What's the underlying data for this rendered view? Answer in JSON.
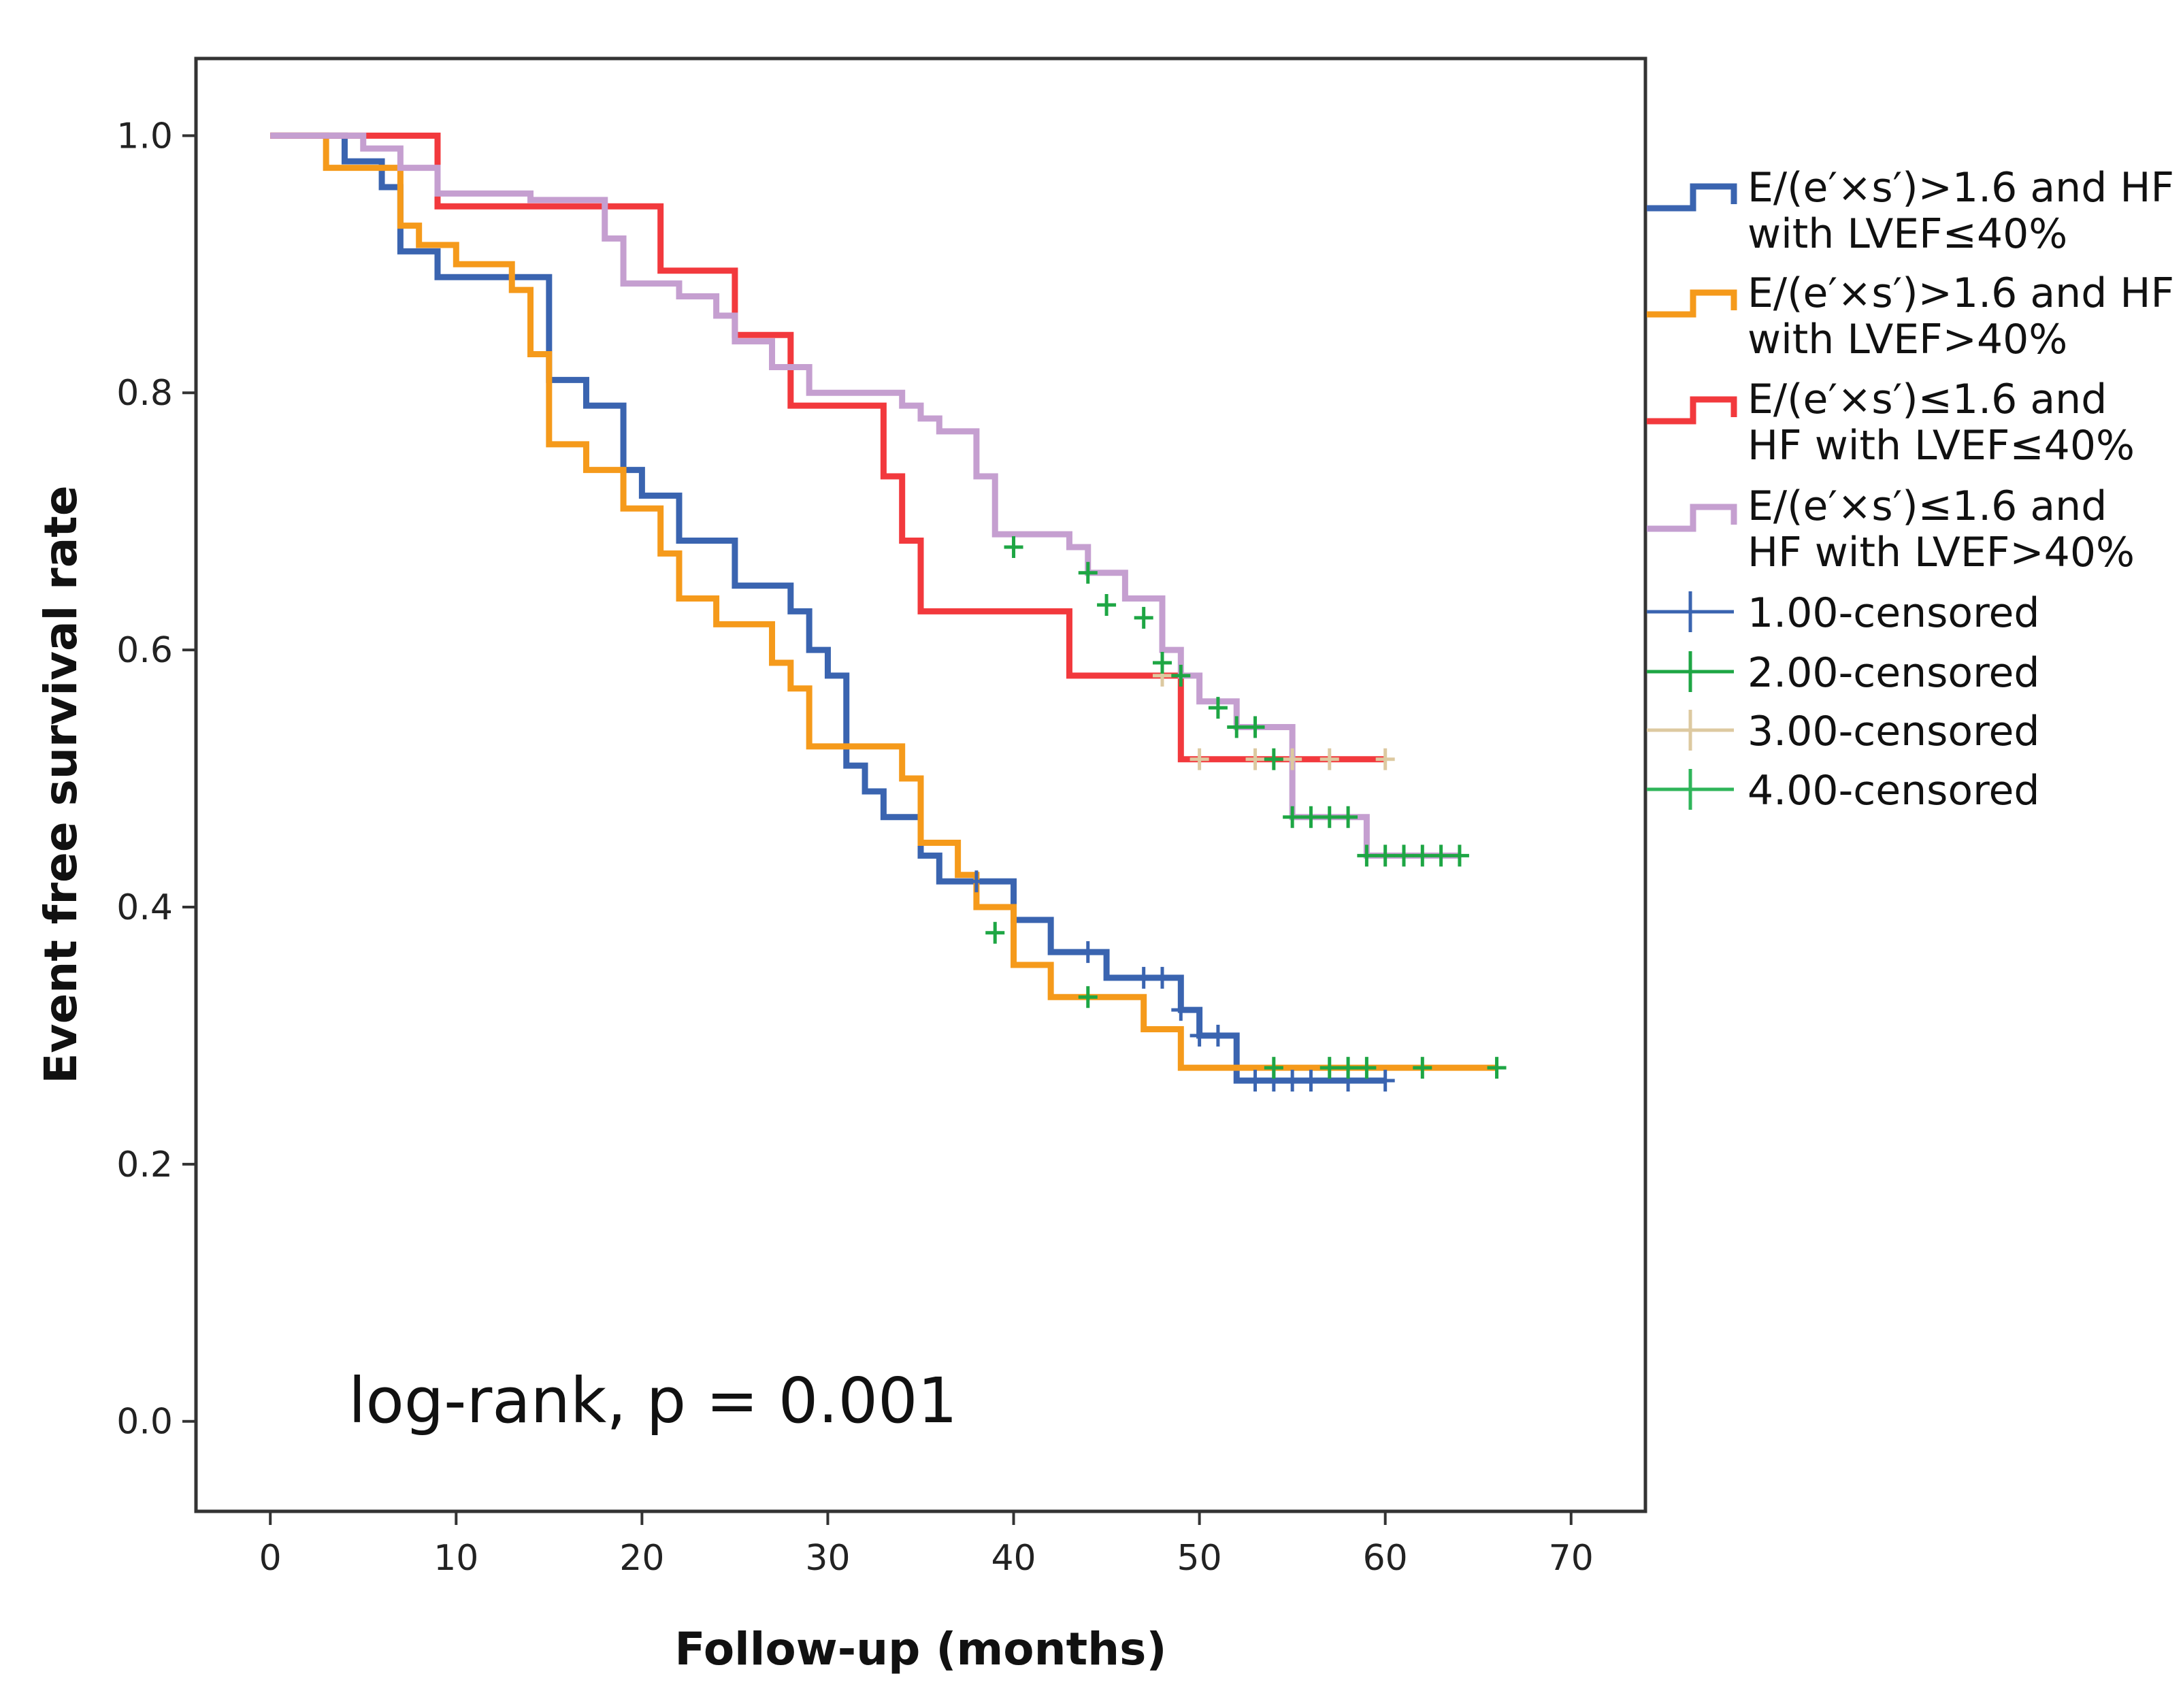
{
  "chart_data": {
    "type": "line",
    "subtype": "kaplan-meier",
    "title": "",
    "xlabel": "Follow-up (months)",
    "ylabel": "Event free survival rate",
    "xlim": [
      -4,
      74
    ],
    "ylim": [
      -0.07,
      1.06
    ],
    "xticks": [
      0,
      10,
      20,
      30,
      40,
      50,
      60,
      70
    ],
    "xtick_labels": [
      "0",
      "10",
      "20",
      "30",
      "40",
      "50",
      "60",
      "70"
    ],
    "yticks": [
      0.0,
      0.2,
      0.4,
      0.6,
      0.8,
      1.0
    ],
    "ytick_labels": [
      "0.0",
      "0.2",
      "0.4",
      "0.6",
      "0.8",
      "1.0"
    ],
    "grid": false,
    "annotation": "log-rank, p = 0.001",
    "legend_position": "right",
    "series": [
      {
        "name": "E/(e′×s′)>1.6 and HF with LVEF≤40%",
        "legend_lines": [
          "E/(e′×s′)>1.6 and HF",
          "with LVEF≤40%"
        ],
        "color": "#3a64b0",
        "steps": [
          [
            0,
            1.0
          ],
          [
            4,
            0.98
          ],
          [
            6,
            0.96
          ],
          [
            7,
            0.91
          ],
          [
            9,
            0.89
          ],
          [
            13,
            0.89
          ],
          [
            15,
            0.81
          ],
          [
            17,
            0.79
          ],
          [
            19,
            0.74
          ],
          [
            20,
            0.72
          ],
          [
            22,
            0.685
          ],
          [
            25,
            0.65
          ],
          [
            28,
            0.63
          ],
          [
            29,
            0.6
          ],
          [
            30,
            0.58
          ],
          [
            31,
            0.51
          ],
          [
            32,
            0.49
          ],
          [
            33,
            0.47
          ],
          [
            35,
            0.44
          ],
          [
            36,
            0.42
          ],
          [
            40,
            0.39
          ],
          [
            42,
            0.365
          ],
          [
            45,
            0.345
          ],
          [
            49,
            0.32
          ],
          [
            50,
            0.3
          ],
          [
            52,
            0.265
          ],
          [
            60,
            0.265
          ]
        ],
        "censored": [
          [
            38,
            0.42
          ],
          [
            44,
            0.365
          ],
          [
            47,
            0.345
          ],
          [
            48,
            0.345
          ],
          [
            49,
            0.32
          ],
          [
            50,
            0.3
          ],
          [
            51,
            0.3
          ],
          [
            53,
            0.265
          ],
          [
            54,
            0.265
          ],
          [
            55,
            0.265
          ],
          [
            56,
            0.265
          ],
          [
            58,
            0.265
          ],
          [
            60,
            0.265
          ]
        ]
      },
      {
        "name": "E/(e′×s′)>1.6 and HF with LVEF>40%",
        "legend_lines": [
          "E/(e′×s′)>1.6 and HF",
          "with LVEF>40%"
        ],
        "color": "#f59a1b",
        "steps": [
          [
            0,
            1.0
          ],
          [
            3,
            0.975
          ],
          [
            7,
            0.93
          ],
          [
            8,
            0.915
          ],
          [
            10,
            0.9
          ],
          [
            13,
            0.88
          ],
          [
            14,
            0.83
          ],
          [
            15,
            0.76
          ],
          [
            17,
            0.74
          ],
          [
            19,
            0.71
          ],
          [
            21,
            0.675
          ],
          [
            22,
            0.64
          ],
          [
            24,
            0.62
          ],
          [
            27,
            0.59
          ],
          [
            28,
            0.57
          ],
          [
            29,
            0.525
          ],
          [
            34,
            0.5
          ],
          [
            35,
            0.45
          ],
          [
            37,
            0.425
          ],
          [
            38,
            0.4
          ],
          [
            40,
            0.355
          ],
          [
            42,
            0.33
          ],
          [
            47,
            0.305
          ],
          [
            49,
            0.275
          ],
          [
            66,
            0.275
          ]
        ],
        "censored": [
          [
            39,
            0.38
          ],
          [
            44,
            0.33
          ],
          [
            54,
            0.275
          ],
          [
            57,
            0.275
          ],
          [
            58,
            0.275
          ],
          [
            59,
            0.275
          ],
          [
            62,
            0.275
          ],
          [
            66,
            0.275
          ]
        ]
      },
      {
        "name": "E/(e′×s′)≤1.6 and HF with LVEF≤40%",
        "legend_lines": [
          "E/(e′×s′)≤1.6 and",
          "HF with LVEF≤40%"
        ],
        "color": "#f2393d",
        "steps": [
          [
            0,
            1.0
          ],
          [
            6,
            1.0
          ],
          [
            9,
            0.945
          ],
          [
            17,
            0.945
          ],
          [
            21,
            0.895
          ],
          [
            25,
            0.845
          ],
          [
            28,
            0.79
          ],
          [
            33,
            0.735
          ],
          [
            34,
            0.685
          ],
          [
            35,
            0.63
          ],
          [
            43,
            0.58
          ],
          [
            49,
            0.515
          ],
          [
            60,
            0.515
          ]
        ],
        "censored": [
          [
            48,
            0.58
          ],
          [
            50,
            0.515
          ],
          [
            53,
            0.515
          ],
          [
            55,
            0.515
          ],
          [
            57,
            0.515
          ],
          [
            60,
            0.515
          ]
        ]
      },
      {
        "name": "E/(e′×s′)≤1.6 and HF with LVEF>40%",
        "legend_lines": [
          "E/(e′×s′)≤1.6 and",
          "HF with LVEF>40%"
        ],
        "color": "#c59fd0",
        "steps": [
          [
            0,
            1.0
          ],
          [
            5,
            0.99
          ],
          [
            7,
            0.975
          ],
          [
            9,
            0.955
          ],
          [
            14,
            0.95
          ],
          [
            18,
            0.92
          ],
          [
            19,
            0.885
          ],
          [
            22,
            0.875
          ],
          [
            24,
            0.86
          ],
          [
            25,
            0.84
          ],
          [
            27,
            0.82
          ],
          [
            29,
            0.8
          ],
          [
            34,
            0.79
          ],
          [
            35,
            0.78
          ],
          [
            36,
            0.77
          ],
          [
            38,
            0.735
          ],
          [
            39,
            0.69
          ],
          [
            43,
            0.68
          ],
          [
            44,
            0.66
          ],
          [
            46,
            0.64
          ],
          [
            48,
            0.6
          ],
          [
            49,
            0.58
          ],
          [
            50,
            0.56
          ],
          [
            52,
            0.54
          ],
          [
            55,
            0.47
          ],
          [
            59,
            0.44
          ],
          [
            64,
            0.44
          ]
        ],
        "censored": [
          [
            40,
            0.68
          ],
          [
            44,
            0.66
          ],
          [
            45,
            0.635
          ],
          [
            47,
            0.625
          ],
          [
            48,
            0.59
          ],
          [
            49,
            0.58
          ],
          [
            51,
            0.555
          ],
          [
            52,
            0.54
          ],
          [
            53,
            0.54
          ],
          [
            54,
            0.515
          ],
          [
            55,
            0.47
          ],
          [
            56,
            0.47
          ],
          [
            57,
            0.47
          ],
          [
            58,
            0.47
          ],
          [
            59,
            0.44
          ],
          [
            60,
            0.44
          ],
          [
            61,
            0.44
          ],
          [
            62,
            0.44
          ],
          [
            63,
            0.44
          ],
          [
            64,
            0.44
          ]
        ]
      }
    ],
    "censor_legend": [
      {
        "label": "1.00-censored",
        "color": "#3a64b0"
      },
      {
        "label": "2.00-censored",
        "color": "#1ea644"
      },
      {
        "label": "3.00-censored",
        "color": "#ddc9a0"
      },
      {
        "label": "4.00-censored",
        "color": "#2fb55a"
      }
    ],
    "censor_mark_colors": [
      "#3a64b0",
      "#1ea644",
      "#ddc9a0",
      "#1ea644"
    ]
  }
}
